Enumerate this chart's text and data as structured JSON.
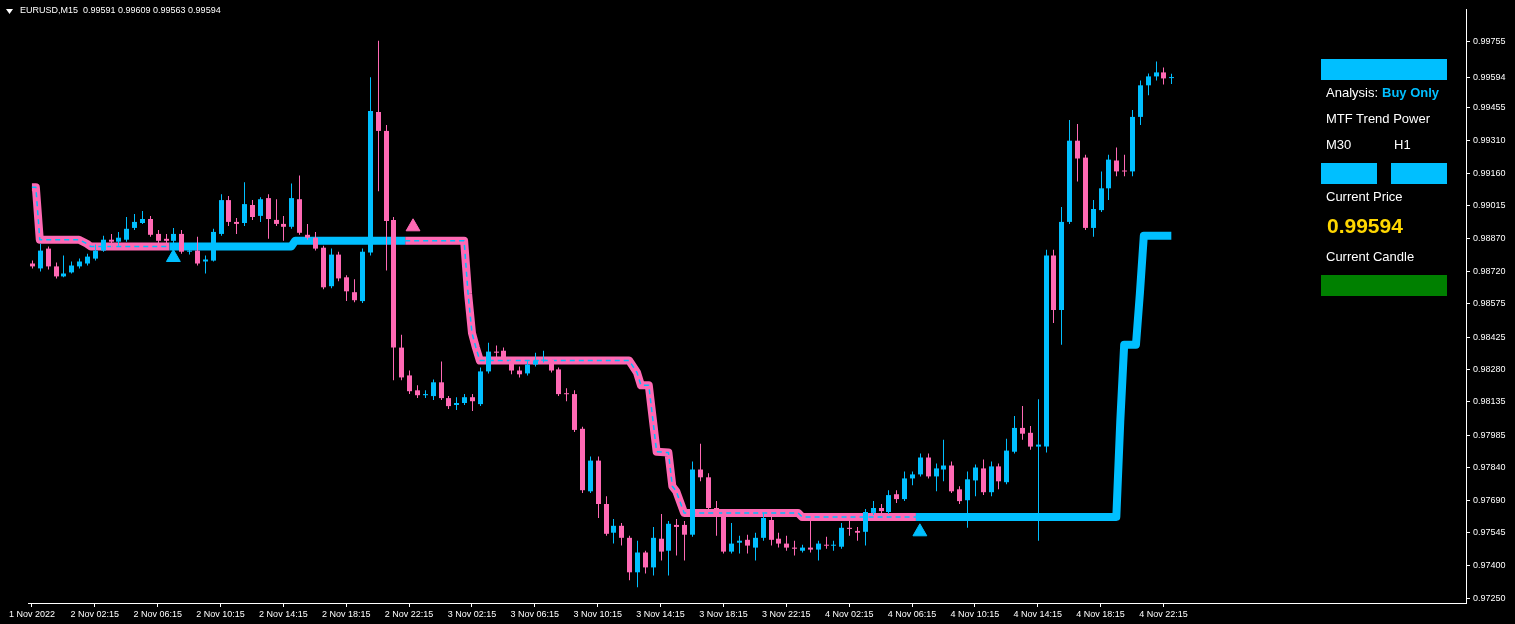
{
  "chart_data": [
    {
      "type": "candlestick",
      "title": "EURUSD,M15  0.99591 0.99609 0.99563 0.99594",
      "xlim": [
        "2022-11-01T22:00",
        "2022-11-05T17:30"
      ],
      "xticks": [
        {
          "value": "2022-11-01T22:15",
          "label": "1 Nov 2022"
        },
        {
          "value": "2022-11-02T02:15",
          "label": "2 Nov 02:15"
        },
        {
          "value": "2022-11-02T06:15",
          "label": "2 Nov 06:15"
        },
        {
          "value": "2022-11-02T10:15",
          "label": "2 Nov 10:15"
        },
        {
          "value": "2022-11-02T14:15",
          "label": "2 Nov 14:15"
        },
        {
          "value": "2022-11-02T18:15",
          "label": "2 Nov 18:15"
        },
        {
          "value": "2022-11-02T22:15",
          "label": "2 Nov 22:15"
        },
        {
          "value": "2022-11-03T02:15",
          "label": "3 Nov 02:15"
        },
        {
          "value": "2022-11-03T06:15",
          "label": "3 Nov 06:15"
        },
        {
          "value": "2022-11-03T10:15",
          "label": "3 Nov 10:15"
        },
        {
          "value": "2022-11-03T14:15",
          "label": "3 Nov 14:15"
        },
        {
          "value": "2022-11-03T18:15",
          "label": "3 Nov 18:15"
        },
        {
          "value": "2022-11-03T22:15",
          "label": "3 Nov 22:15"
        },
        {
          "value": "2022-11-04T02:15",
          "label": "4 Nov 02:15"
        },
        {
          "value": "2022-11-04T06:15",
          "label": "4 Nov 06:15"
        },
        {
          "value": "2022-11-04T10:15",
          "label": "4 Nov 10:15"
        },
        {
          "value": "2022-11-04T14:15",
          "label": "4 Nov 14:15"
        },
        {
          "value": "2022-11-04T18:15",
          "label": "4 Nov 18:15"
        },
        {
          "value": "2022-11-04T22:15",
          "label": "4 Nov 22:15"
        }
      ],
      "ylim": [
        0.9723,
        0.999
      ],
      "yticks": [
        0.99755,
        0.99594,
        0.99455,
        {
          "value": 0.9931,
          "label": "0.99310"
        },
        {
          "value": 0.9916,
          "label": "0.99160"
        },
        0.99015,
        {
          "value": 0.9887,
          "label": "0.98870"
        },
        {
          "value": 0.9872,
          "label": "0.98720"
        },
        0.98575,
        0.98425,
        {
          "value": 0.9828,
          "label": "0.98280"
        },
        0.98135,
        0.97985,
        {
          "value": 0.9784,
          "label": "0.97840"
        },
        {
          "value": 0.9769,
          "label": "0.97690"
        },
        0.97545,
        {
          "value": 0.974,
          "label": "0.97400"
        },
        {
          "value": 0.9725,
          "label": "0.97250"
        }
      ],
      "series": [
        {
          "type": "candlestick",
          "x": [
            "2022-11-01T22:15",
            "2022-11-01T22:45",
            "2022-11-01T23:15",
            "2022-11-01T23:45",
            "2022-11-02T00:15",
            "2022-11-02T00:45",
            "2022-11-02T01:15",
            "2022-11-02T01:45",
            "2022-11-02T02:15",
            "2022-11-02T02:45",
            "2022-11-02T03:15",
            "2022-11-02T03:45",
            "2022-11-02T04:15",
            "2022-11-02T04:45",
            "2022-11-02T05:15",
            "2022-11-02T05:45",
            "2022-11-02T06:15",
            "2022-11-02T06:45",
            "2022-11-02T07:15",
            "2022-11-02T07:45",
            "2022-11-02T08:15",
            "2022-11-02T08:45",
            "2022-11-02T09:15",
            "2022-11-02T09:45",
            "2022-11-02T10:15",
            "2022-11-02T10:45",
            "2022-11-02T11:15",
            "2022-11-02T11:45",
            "2022-11-02T12:15",
            "2022-11-02T12:45",
            "2022-11-02T13:15",
            "2022-11-02T13:45",
            "2022-11-02T14:15",
            "2022-11-02T14:45",
            "2022-11-02T15:15",
            "2022-11-02T15:45",
            "2022-11-02T16:15",
            "2022-11-02T16:45",
            "2022-11-02T17:15",
            "2022-11-02T17:45",
            "2022-11-02T18:15",
            "2022-11-02T18:45",
            "2022-11-02T19:15",
            "2022-11-02T19:45",
            "2022-11-02T20:15",
            "2022-11-02T20:45",
            "2022-11-02T21:15",
            "2022-11-02T21:45",
            "2022-11-02T22:15",
            "2022-11-02T22:45",
            "2022-11-02T23:15",
            "2022-11-02T23:45",
            "2022-11-03T00:15",
            "2022-11-03T00:45",
            "2022-11-03T01:15",
            "2022-11-03T01:45",
            "2022-11-03T02:15",
            "2022-11-03T02:45",
            "2022-11-03T03:15",
            "2022-11-03T03:45",
            "2022-11-03T04:15",
            "2022-11-03T04:45",
            "2022-11-03T05:15",
            "2022-11-03T05:45",
            "2022-11-03T06:15",
            "2022-11-03T06:45",
            "2022-11-03T07:15",
            "2022-11-03T07:45",
            "2022-11-03T08:15",
            "2022-11-03T08:45",
            "2022-11-03T09:15",
            "2022-11-03T09:45",
            "2022-11-03T10:15",
            "2022-11-03T10:45",
            "2022-11-03T11:15",
            "2022-11-03T11:45",
            "2022-11-03T12:15",
            "2022-11-03T12:45",
            "2022-11-03T13:15",
            "2022-11-03T13:45",
            "2022-11-03T14:15",
            "2022-11-03T14:45",
            "2022-11-03T15:15",
            "2022-11-03T15:45",
            "2022-11-03T16:15",
            "2022-11-03T16:45",
            "2022-11-03T17:15",
            "2022-11-03T17:45",
            "2022-11-03T18:15",
            "2022-11-03T18:45",
            "2022-11-03T19:15",
            "2022-11-03T19:45",
            "2022-11-03T20:15",
            "2022-11-03T20:45",
            "2022-11-03T21:15",
            "2022-11-03T21:45",
            "2022-11-03T22:15",
            "2022-11-03T22:45",
            "2022-11-03T23:15",
            "2022-11-03T23:45",
            "2022-11-04T00:15",
            "2022-11-04T00:45",
            "2022-11-04T01:15",
            "2022-11-04T01:45",
            "2022-11-04T02:15",
            "2022-11-04T02:45",
            "2022-11-04T03:15",
            "2022-11-04T03:45",
            "2022-11-04T04:15",
            "2022-11-04T04:45",
            "2022-11-04T05:15",
            "2022-11-04T05:45",
            "2022-11-04T06:15",
            "2022-11-04T06:45",
            "2022-11-04T07:15",
            "2022-11-04T07:45",
            "2022-11-04T08:15",
            "2022-11-04T08:45",
            "2022-11-04T09:15",
            "2022-11-04T09:45",
            "2022-11-04T10:15",
            "2022-11-04T10:45",
            "2022-11-04T11:15",
            "2022-11-04T11:45",
            "2022-11-04T12:15",
            "2022-11-04T12:45",
            "2022-11-04T13:15",
            "2022-11-04T13:45",
            "2022-11-04T14:15",
            "2022-11-04T14:45",
            "2022-11-04T15:15",
            "2022-11-04T15:45",
            "2022-11-04T16:15",
            "2022-11-04T16:45",
            "2022-11-04T17:15",
            "2022-11-04T17:45",
            "2022-11-04T18:15",
            "2022-11-04T18:45",
            "2022-11-04T19:15",
            "2022-11-04T19:45",
            "2022-11-04T20:15",
            "2022-11-04T20:45",
            "2022-11-04T21:15",
            "2022-11-04T21:45",
            "2022-11-04T22:15",
            "2022-11-04T22:45"
          ],
          "ohlc": [
            [
              0.98756,
              0.98769,
              0.98734,
              0.98743
            ],
            [
              0.98734,
              0.98845,
              0.9872,
              0.98814
            ],
            [
              0.98823,
              0.98832,
              0.98729,
              0.98743
            ],
            [
              0.98743,
              0.9876,
              0.98689,
              0.98698
            ],
            [
              0.98698,
              0.98792,
              0.98694,
              0.98711
            ],
            [
              0.98716,
              0.98765,
              0.98711,
              0.98747
            ],
            [
              0.98743,
              0.98778,
              0.98734,
              0.98765
            ],
            [
              0.98756,
              0.988,
              0.98747,
              0.98787
            ],
            [
              0.98778,
              0.98841,
              0.98769,
              0.98814
            ],
            [
              0.98814,
              0.98881,
              0.98809,
              0.98863
            ],
            [
              0.98863,
              0.98889,
              0.98827,
              0.98854
            ],
            [
              0.98854,
              0.98898,
              0.98836,
              0.98872
            ],
            [
              0.98863,
              0.98965,
              0.98854,
              0.98912
            ],
            [
              0.98916,
              0.98978,
              0.98907,
              0.98943
            ],
            [
              0.98938,
              0.98992,
              0.98934,
              0.98956
            ],
            [
              0.98956,
              0.9897,
              0.98876,
              0.98885
            ],
            [
              0.98889,
              0.98907,
              0.98845,
              0.98858
            ],
            [
              0.98867,
              0.98889,
              0.98841,
              0.98858
            ],
            [
              0.98858,
              0.98916,
              0.98845,
              0.98889
            ],
            [
              0.98889,
              0.98907,
              0.988,
              0.98809
            ],
            [
              0.98809,
              0.98845,
              0.98796,
              0.98814
            ],
            [
              0.98814,
              0.98876,
              0.98747,
              0.98756
            ],
            [
              0.98765,
              0.98792,
              0.98711,
              0.98774
            ],
            [
              0.98769,
              0.98912,
              0.98765,
              0.98898
            ],
            [
              0.98889,
              0.99067,
              0.98881,
              0.99041
            ],
            [
              0.99041,
              0.99059,
              0.98925,
              0.98943
            ],
            [
              0.98943,
              0.98961,
              0.98889,
              0.98934
            ],
            [
              0.98938,
              0.99121,
              0.98925,
              0.99023
            ],
            [
              0.99019,
              0.99041,
              0.98952,
              0.98965
            ],
            [
              0.9897,
              0.99054,
              0.98943,
              0.99045
            ],
            [
              0.9905,
              0.99067,
              0.98867,
              0.98956
            ],
            [
              0.98952,
              0.99045,
              0.98925,
              0.98934
            ],
            [
              0.98934,
              0.9897,
              0.98858,
              0.98921
            ],
            [
              0.98921,
              0.99116,
              0.98912,
              0.9905
            ],
            [
              0.99045,
              0.99152,
              0.98885,
              0.98894
            ],
            [
              0.98885,
              0.98934,
              0.98863,
              0.98872
            ],
            [
              0.98872,
              0.98898,
              0.98814,
              0.98823
            ],
            [
              0.98827,
              0.98836,
              0.9864,
              0.98649
            ],
            [
              0.98654,
              0.98823,
              0.98645,
              0.98796
            ],
            [
              0.98796,
              0.98809,
              0.98676,
              0.98689
            ],
            [
              0.98694,
              0.98703,
              0.98587,
              0.98631
            ],
            [
              0.98627,
              0.98685,
              0.98582,
              0.98591
            ],
            [
              0.98587,
              0.98823,
              0.98578,
              0.98809
            ],
            [
              0.98805,
              0.99593,
              0.98792,
              0.99441
            ],
            [
              0.99437,
              0.99757,
              0.99081,
              0.99352
            ],
            [
              0.99352,
              0.99379,
              0.98725,
              0.98947
            ],
            [
              0.98952,
              0.98965,
              0.98231,
              0.98378
            ],
            [
              0.98378,
              0.98436,
              0.98231,
              0.98244
            ],
            [
              0.98253,
              0.98275,
              0.98169,
              0.98182
            ],
            [
              0.98186,
              0.98209,
              0.98151,
              0.98164
            ],
            [
              0.98164,
              0.98186,
              0.98151,
              0.98169
            ],
            [
              0.9816,
              0.98235,
              0.98142,
              0.98222
            ],
            [
              0.98222,
              0.98315,
              0.98142,
              0.98151
            ],
            [
              0.98151,
              0.9816,
              0.98102,
              0.98115
            ],
            [
              0.9812,
              0.98155,
              0.98097,
              0.98129
            ],
            [
              0.98129,
              0.98169,
              0.9812,
              0.98155
            ],
            [
              0.98155,
              0.98169,
              0.98093,
              0.98137
            ],
            [
              0.98124,
              0.98289,
              0.98115,
              0.98271
            ],
            [
              0.98271,
              0.984,
              0.98262,
              0.9836
            ],
            [
              0.9836,
              0.98387,
              0.98324,
              0.98355
            ],
            [
              0.98364,
              0.98378,
              0.98315,
              0.98324
            ],
            [
              0.9832,
              0.98329,
              0.98258,
              0.98275
            ],
            [
              0.98275,
              0.98293,
              0.98244,
              0.98258
            ],
            [
              0.98262,
              0.9832,
              0.98253,
              0.98302
            ],
            [
              0.98302,
              0.98355,
              0.98293,
              0.9832
            ],
            [
              0.9832,
              0.98364,
              0.98311,
              0.98324
            ],
            [
              0.98324,
              0.98333,
              0.98266,
              0.98275
            ],
            [
              0.9828,
              0.98289,
              0.9816,
              0.98169
            ],
            [
              0.98173,
              0.98195,
              0.98137,
              0.98169
            ],
            [
              0.98169,
              0.98186,
              0.97999,
              0.98008
            ],
            [
              0.98013,
              0.98022,
              0.97724,
              0.97737
            ],
            [
              0.97732,
              0.97888,
              0.97724,
              0.9787
            ],
            [
              0.9787,
              0.97888,
              0.97612,
              0.97675
            ],
            [
              0.97675,
              0.9771,
              0.97532,
              0.97541
            ],
            [
              0.97546,
              0.97608,
              0.97497,
              0.97577
            ],
            [
              0.97577,
              0.9759,
              0.97488,
              0.97523
            ],
            [
              0.97523,
              0.97532,
              0.97332,
              0.97368
            ],
            [
              0.97368,
              0.9751,
              0.97301,
              0.97457
            ],
            [
              0.97457,
              0.97465,
              0.97363,
              0.9739
            ],
            [
              0.9739,
              0.97572,
              0.97354,
              0.97523
            ],
            [
              0.97519,
              0.9763,
              0.97421,
              0.97461
            ],
            [
              0.97465,
              0.97599,
              0.97354,
              0.97586
            ],
            [
              0.97581,
              0.97608,
              0.97443,
              0.97572
            ],
            [
              0.97581,
              0.97599,
              0.97421,
              0.97537
            ],
            [
              0.97537,
              0.97866,
              0.97528,
              0.9783
            ],
            [
              0.9783,
              0.97946,
              0.97777,
              0.97795
            ],
            [
              0.97795,
              0.97813,
              0.97643,
              0.97657
            ],
            [
              0.97657,
              0.97688,
              0.97532,
              0.97621
            ],
            [
              0.97621,
              0.97635,
              0.97452,
              0.97461
            ],
            [
              0.97461,
              0.9759,
              0.97452,
              0.97497
            ],
            [
              0.97501,
              0.97532,
              0.97452,
              0.9751
            ],
            [
              0.97514,
              0.97537,
              0.97452,
              0.97488
            ],
            [
              0.97479,
              0.97546,
              0.97421,
              0.97523
            ],
            [
              0.97523,
              0.97635,
              0.9751,
              0.97612
            ],
            [
              0.97603,
              0.97621,
              0.97488,
              0.97514
            ],
            [
              0.97519,
              0.97546,
              0.97479,
              0.97497
            ],
            [
              0.97497,
              0.97532,
              0.97465,
              0.97479
            ],
            [
              0.97479,
              0.9751,
              0.97443,
              0.97474
            ],
            [
              0.97465,
              0.97492,
              0.97457,
              0.97479
            ],
            [
              0.97479,
              0.97603,
              0.97457,
              0.9747
            ],
            [
              0.9747,
              0.9751,
              0.97421,
              0.97497
            ],
            [
              0.97492,
              0.97528,
              0.97474,
              0.97488
            ],
            [
              0.97488,
              0.9751,
              0.97465,
              0.97492
            ],
            [
              0.97483,
              0.9759,
              0.97474,
              0.97568
            ],
            [
              0.97568,
              0.97599,
              0.97532,
              0.97563
            ],
            [
              0.97554,
              0.97572,
              0.9751,
              0.97546
            ],
            [
              0.9755,
              0.97652,
              0.97488,
              0.97639
            ],
            [
              0.97635,
              0.97688,
              0.97626,
              0.97657
            ],
            [
              0.97657,
              0.97675,
              0.97626,
              0.97643
            ],
            [
              0.97639,
              0.97737,
              0.9763,
              0.97715
            ],
            [
              0.97719,
              0.97737,
              0.97679,
              0.97697
            ],
            [
              0.97697,
              0.97821,
              0.97688,
              0.9779
            ],
            [
              0.9779,
              0.97821,
              0.97759,
              0.97808
            ],
            [
              0.97808,
              0.97902,
              0.97799,
              0.97884
            ],
            [
              0.97884,
              0.97902,
              0.9779,
              0.97799
            ],
            [
              0.97799,
              0.97857,
              0.97732,
              0.97835
            ],
            [
              0.9783,
              0.97964,
              0.97777,
              0.97848
            ],
            [
              0.97848,
              0.97866,
              0.97724,
              0.97732
            ],
            [
              0.97741,
              0.97755,
              0.97675,
              0.97688
            ],
            [
              0.97692,
              0.97821,
              0.97568,
              0.97786
            ],
            [
              0.97781,
              0.97853,
              0.9771,
              0.97839
            ],
            [
              0.97835,
              0.97875,
              0.97715,
              0.97728
            ],
            [
              0.97728,
              0.97866,
              0.9771,
              0.97844
            ],
            [
              0.97844,
              0.97857,
              0.97741,
              0.97777
            ],
            [
              0.97773,
              0.97968,
              0.97764,
              0.97915
            ],
            [
              0.9791,
              0.98071,
              0.97902,
              0.98017
            ],
            [
              0.98017,
              0.98115,
              0.97964,
              0.97991
            ],
            [
              0.97995,
              0.98026,
              0.97919,
              0.97933
            ],
            [
              0.97933,
              0.98146,
              0.9751,
              0.97942
            ],
            [
              0.97933,
              0.98818,
              0.97906,
              0.98792
            ],
            [
              0.98792,
              0.98818,
              0.98489,
              0.98547
            ],
            [
              0.98547,
              0.9901,
              0.98391,
              0.98943
            ],
            [
              0.98943,
              0.99401,
              0.98934,
              0.99308
            ],
            [
              0.99308,
              0.99383,
              0.99125,
              0.99228
            ],
            [
              0.99232,
              0.99245,
              0.98907,
              0.98916
            ],
            [
              0.98916,
              0.99041,
              0.98876,
              0.99001
            ],
            [
              0.98996,
              0.9917,
              0.98987,
              0.99094
            ],
            [
              0.99094,
              0.99245,
              0.99041,
              0.99223
            ],
            [
              0.99219,
              0.99277,
              0.99148,
              0.9917
            ],
            [
              0.99174,
              0.99245,
              0.99148,
              0.9917
            ],
            [
              0.9917,
              0.99446,
              0.99148,
              0.99415
            ],
            [
              0.99415,
              0.99579,
              0.99379,
              0.99557
            ],
            [
              0.99557,
              0.9961,
              0.99512,
              0.99597
            ],
            [
              0.99597,
              0.99664,
              0.99579,
              0.99615
            ],
            [
              0.99615,
              0.99637,
              0.99561,
              0.99588
            ],
            [
              0.99591,
              0.99609,
              0.99563,
              0.99594
            ]
          ],
          "colors": [
            "#ff69b4",
            "#00bfff",
            "#ff69b4",
            "#ff69b4",
            "#00bfff",
            "#00bfff",
            "#00bfff",
            "#00bfff",
            "#00bfff",
            "#00bfff",
            "#ff69b4",
            "#00bfff",
            "#00bfff",
            "#00bfff",
            "#00bfff",
            "#ff69b4",
            "#ff69b4",
            "#ff69b4",
            "#00bfff",
            "#ff69b4",
            "#00bfff",
            "#ff69b4",
            "#00bfff",
            "#00bfff",
            "#00bfff",
            "#ff69b4",
            "#ff69b4",
            "#00bfff",
            "#ff69b4",
            "#00bfff",
            "#ff69b4",
            "#ff69b4",
            "#ff69b4",
            "#00bfff",
            "#ff69b4",
            "#ff69b4",
            "#ff69b4",
            "#ff69b4",
            "#00bfff",
            "#ff69b4",
            "#ff69b4",
            "#ff69b4",
            "#00bfff",
            "#00bfff",
            "#ff69b4",
            "#ff69b4",
            "#ff69b4",
            "#ff69b4",
            "#ff69b4",
            "#ff69b4",
            "#00bfff",
            "#00bfff",
            "#ff69b4",
            "#ff69b4",
            "#00bfff",
            "#00bfff",
            "#ff69b4",
            "#00bfff",
            "#00bfff",
            "#ff69b4",
            "#ff69b4",
            "#ff69b4",
            "#ff69b4",
            "#00bfff",
            "#00bfff",
            "#00bfff",
            "#ff69b4",
            "#ff69b4",
            "#ff69b4",
            "#ff69b4",
            "#ff69b4",
            "#00bfff",
            "#ff69b4",
            "#ff69b4",
            "#00bfff",
            "#ff69b4",
            "#ff69b4",
            "#00bfff",
            "#ff69b4",
            "#00bfff",
            "#ff69b4",
            "#00bfff",
            "#ff69b4",
            "#ff69b4",
            "#00bfff",
            "#ff69b4",
            "#ff69b4",
            "#ff69b4",
            "#ff69b4",
            "#00bfff",
            "#00bfff",
            "#ff69b4",
            "#00bfff",
            "#00bfff",
            "#ff69b4",
            "#ff69b4",
            "#ff69b4",
            "#ff69b4",
            "#00bfff",
            "#ff69b4",
            "#00bfff",
            "#ff69b4",
            "#00bfff",
            "#00bfff",
            "#ff69b4",
            "#ff69b4",
            "#00bfff",
            "#00bfff",
            "#ff69b4",
            "#00bfff",
            "#ff69b4",
            "#00bfff",
            "#00bfff",
            "#00bfff",
            "#ff69b4",
            "#00bfff",
            "#00bfff",
            "#ff69b4",
            "#ff69b4",
            "#00bfff",
            "#00bfff",
            "#ff69b4",
            "#00bfff",
            "#ff69b4",
            "#00bfff",
            "#00bfff",
            "#ff69b4",
            "#ff69b4",
            "#00bfff",
            "#00bfff",
            "#ff69b4",
            "#00bfff",
            "#00bfff",
            "#ff69b4",
            "#ff69b4",
            "#00bfff",
            "#00bfff",
            "#00bfff",
            "#ff69b4",
            "#ff69b4",
            "#00bfff",
            "#00bfff",
            "#00bfff",
            "#00bfff",
            "#ff69b4",
            "#00bfff"
          ]
        },
        {
          "type": "line",
          "color": "#ff69b4",
          "x": [
            "2022-11-01T22:15",
            "2022-11-01T22:30",
            "2022-11-01T22:45",
            "2022-11-02T01:15",
            "2022-11-02T01:45",
            "2022-11-02T02:00",
            "2022-11-02T07:00",
            "2022-11-02T14:00",
            "2022-11-02T22:00",
            "2022-11-03T01:45",
            "2022-11-03T02:00",
            "2022-11-03T02:15",
            "2022-11-03T02:30",
            "2022-11-03T02:45",
            "2022-11-03T12:15",
            "2022-11-03T12:45",
            "2022-11-03T13:00",
            "2022-11-03T13:30",
            "2022-11-03T14:00",
            "2022-11-03T14:45",
            "2022-11-03T15:00",
            "2022-11-03T15:15",
            "2022-11-03T15:45",
            "2022-11-03T23:00",
            "2022-11-03T23:15",
            "2022-11-04T06:30"
          ],
          "values": [
            0.99099,
            0.99099,
            0.98863,
            0.98863,
            0.98845,
            0.98832,
            0.98832,
            null,
            0.98858,
            0.98858,
            0.98622,
            0.98444,
            0.98378,
            0.9832,
            0.9832,
            0.98266,
            0.98209,
            0.98209,
            0.9791,
            0.97906,
            0.97755,
            0.97732,
            0.97635,
            0.97635,
            0.97617,
            0.97617
          ]
        },
        {
          "type": "line",
          "color": "#00bfff",
          "x": [
            "2022-11-02T07:00",
            "2022-11-02T14:45",
            "2022-11-02T15:00",
            "2022-11-02T22:00",
            "2022-11-03T12:00",
            "2022-11-04T06:30",
            "2022-11-04T19:15",
            "2022-11-04T19:30",
            "2022-11-04T19:45",
            "2022-11-04T20:30",
            "2022-11-04T20:45",
            "2022-11-04T21:00",
            "2022-11-04T22:45"
          ],
          "values": [
            0.98832,
            0.98832,
            0.98858,
            0.98858,
            null,
            0.97617,
            0.97617,
            0.98044,
            0.98391,
            0.98391,
            0.98622,
            0.98881,
            0.98881
          ]
        },
        {
          "type": "line",
          "color": "#00bfff",
          "line_style": "dashed",
          "x": [
            "2022-11-01T22:15",
            "2022-11-01T22:30",
            "2022-11-01T22:45",
            "2022-11-02T01:15",
            "2022-11-02T01:45",
            "2022-11-02T02:00",
            "2022-11-02T07:00",
            "2022-11-02T14:00",
            "2022-11-02T22:00",
            "2022-11-03T01:45",
            "2022-11-03T02:00",
            "2022-11-03T02:15",
            "2022-11-03T02:30",
            "2022-11-03T02:45",
            "2022-11-03T12:15",
            "2022-11-03T12:45",
            "2022-11-03T13:00",
            "2022-11-03T13:30",
            "2022-11-03T14:00",
            "2022-11-03T14:45",
            "2022-11-03T15:00",
            "2022-11-03T15:15",
            "2022-11-03T15:45",
            "2022-11-03T23:00",
            "2022-11-03T23:15",
            "2022-11-04T06:30"
          ],
          "values": [
            0.99099,
            0.99099,
            0.98863,
            0.98863,
            0.98845,
            0.98832,
            0.98832,
            null,
            0.98858,
            0.98858,
            0.98622,
            0.98444,
            0.98378,
            0.9832,
            0.9832,
            0.98266,
            0.98209,
            0.98209,
            0.9791,
            0.97906,
            0.97755,
            0.97732,
            0.97635,
            0.97635,
            0.97617,
            0.97617
          ]
        },
        {
          "type": "scatter",
          "color": "#00bfff",
          "marker": "triangle",
          "x": [
            "2022-11-02T07:15",
            "2022-11-04T06:45"
          ],
          "values": [
            0.98783,
            0.9755
          ]
        },
        {
          "type": "scatter",
          "color": "#ff69b4",
          "marker": "triangle",
          "x": [
            "2022-11-02T22:30"
          ],
          "values": [
            0.98921
          ]
        }
      ]
    },
    {
      "type": "other",
      "annotations": [
        "Analysis:",
        "Buy Only",
        "MTF Trend Power",
        "M30",
        "H1",
        "Current Price",
        "0.99594",
        "Current Candle"
      ]
    }
  ]
}
